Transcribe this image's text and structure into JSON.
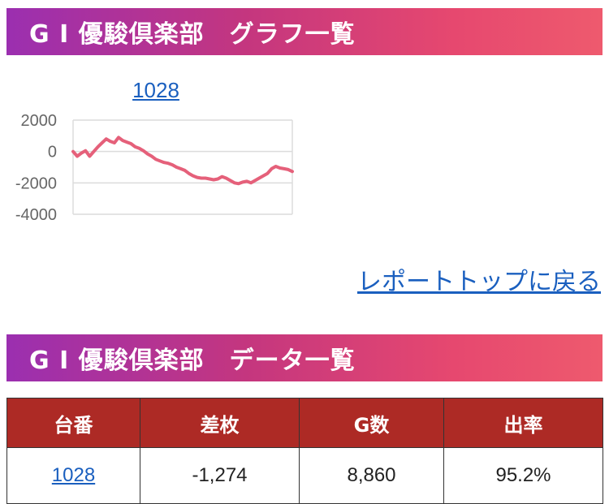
{
  "graph_section": {
    "title": "G I 優駿倶楽部　グラフ一覧"
  },
  "data_section": {
    "title": "G I 優駿倶楽部　データ一覧"
  },
  "report_top_link": "レポートトップに戻る",
  "chart_link_label": "1028",
  "chart_data": {
    "type": "line",
    "title": "1028",
    "y_ticks": [
      "2000",
      "0",
      "-2000",
      "-4000"
    ],
    "ylim": [
      -4000,
      2000
    ],
    "grid": true,
    "color": "#e5607a",
    "x": [
      0,
      1,
      2,
      3,
      4,
      5,
      6,
      7,
      8,
      9,
      10,
      11,
      12,
      13,
      14,
      15,
      16,
      17,
      18,
      19,
      20,
      21,
      22,
      23,
      24,
      25,
      26,
      27,
      28,
      29,
      30,
      31,
      32,
      33,
      34,
      35,
      36,
      37,
      38,
      39,
      40,
      41,
      42,
      43,
      44,
      45,
      46,
      47,
      48,
      49,
      50,
      51,
      52,
      53
    ],
    "values": [
      0,
      -300,
      -100,
      50,
      -300,
      0,
      300,
      550,
      800,
      650,
      550,
      900,
      700,
      600,
      500,
      300,
      200,
      50,
      -150,
      -300,
      -500,
      -600,
      -700,
      -750,
      -850,
      -1000,
      -1100,
      -1200,
      -1400,
      -1550,
      -1650,
      -1700,
      -1700,
      -1750,
      -1800,
      -1750,
      -1600,
      -1700,
      -1850,
      -2000,
      -2050,
      -1950,
      -1900,
      -2000,
      -1850,
      -1700,
      -1550,
      -1400,
      -1100,
      -950,
      -1050,
      -1100,
      -1150,
      -1274
    ]
  },
  "table": {
    "headers": [
      "台番",
      "差枚",
      "G数",
      "出率"
    ],
    "rows": [
      {
        "machine": "1028",
        "diff": "-1,274",
        "games": "8,860",
        "rate": "95.2%"
      }
    ]
  }
}
